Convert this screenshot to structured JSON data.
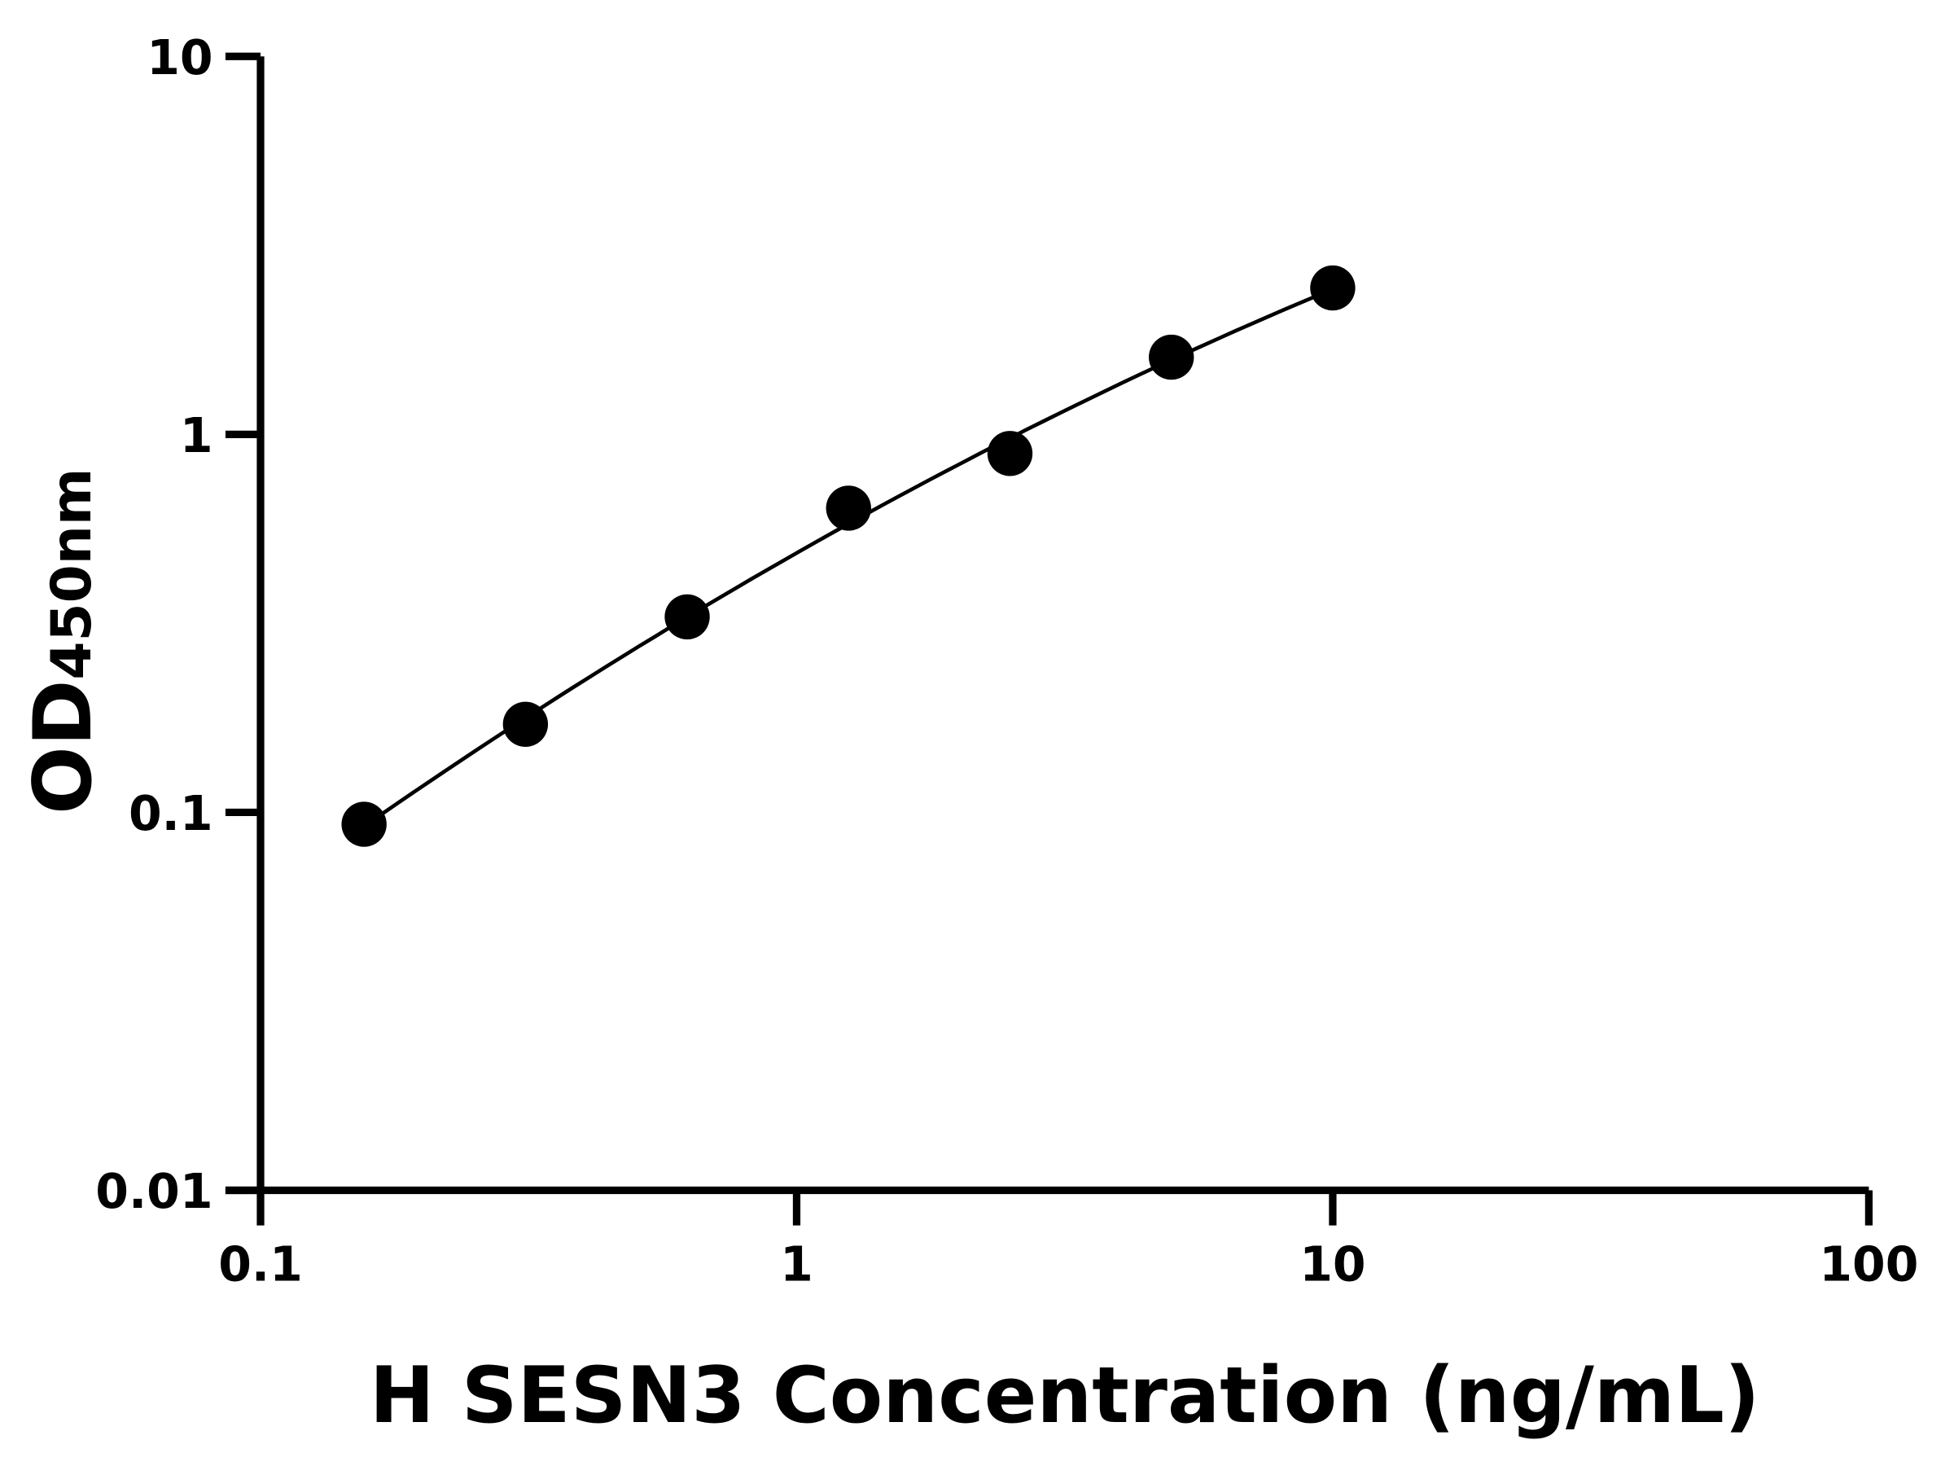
{
  "chart_data": {
    "type": "scatter",
    "title": "",
    "xlabel": "H SESN3 Concentration (ng/mL)",
    "ylabel_main": "OD",
    "ylabel_sub": "450nm",
    "x_scale": "log",
    "y_scale": "log",
    "xlim": [
      0.1,
      100
    ],
    "ylim": [
      0.01,
      10
    ],
    "x_ticks": [
      "0.1",
      "1",
      "10",
      "100"
    ],
    "y_ticks": [
      "0.01",
      "0.1",
      "1",
      "10"
    ],
    "grid": false,
    "legend": "none",
    "fit_curve": true,
    "marker_color": "#000000",
    "line_color": "#000000",
    "series": [
      {
        "x": [
          0.156,
          0.312,
          0.625,
          1.25,
          2.5,
          5,
          10
        ],
        "y": [
          0.093,
          0.171,
          0.329,
          0.638,
          0.89,
          1.6,
          2.44
        ]
      }
    ]
  }
}
